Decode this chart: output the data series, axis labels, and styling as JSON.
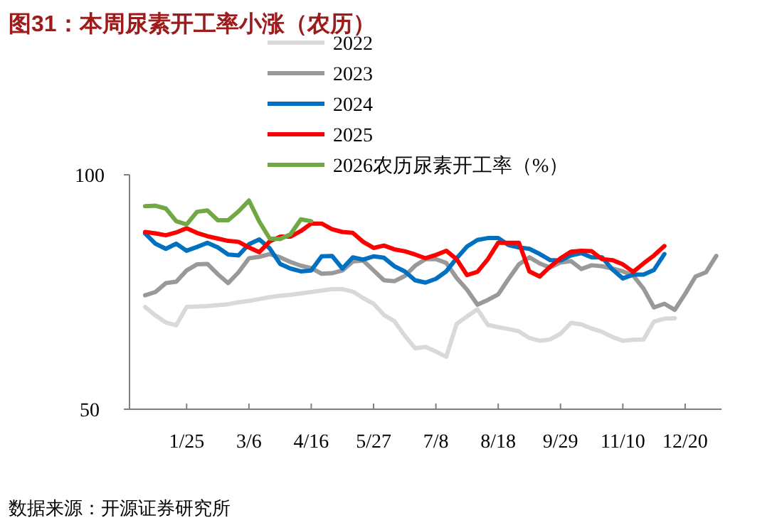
{
  "chart_data": {
    "type": "line",
    "title": "图31：本周尿素开工率小涨（农历）",
    "annotations": [
      "数据来源：开源证券研究所"
    ],
    "ylim": [
      50,
      100
    ],
    "yticks": [
      50,
      100
    ],
    "categories": [
      null,
      null,
      null,
      null,
      null,
      "1/25",
      null,
      null,
      null,
      null,
      null,
      "3/6",
      null,
      null,
      null,
      null,
      null,
      "4/16",
      null,
      null,
      null,
      null,
      null,
      "5/27",
      null,
      null,
      null,
      null,
      null,
      "7/8",
      null,
      null,
      null,
      null,
      null,
      "8/18",
      null,
      null,
      null,
      null,
      null,
      "9/29",
      null,
      null,
      null,
      null,
      null,
      "11/10",
      null,
      null,
      null,
      null,
      null,
      "12/20",
      null,
      null,
      null
    ],
    "legend": "top",
    "series": [
      {
        "name": "2022",
        "color": "#d9d9d9",
        "values": [
          null,
          71.8,
          70.0,
          68.5,
          67.9,
          71.8,
          71.9,
          72.0,
          72.2,
          72.4,
          72.8,
          73.1,
          73.5,
          73.9,
          74.2,
          74.4,
          74.7,
          75.0,
          75.3,
          75.6,
          75.6,
          75.1,
          73.7,
          72.5,
          70.1,
          68.8,
          65.7,
          63.0,
          63.3,
          62.3,
          61.2,
          68.2,
          69.8,
          71.3,
          68.0,
          67.5,
          67.1,
          66.6,
          65.2,
          64.6,
          64.9,
          66.1,
          68.4,
          68.1,
          67.2,
          66.5,
          65.4,
          64.6,
          64.8,
          64.9,
          68.7,
          69.3,
          69.4,
          null,
          null,
          null,
          null
        ]
      },
      {
        "name": "2023",
        "color": "#999999",
        "values": [
          null,
          74.3,
          75.0,
          76.9,
          77.2,
          79.6,
          80.9,
          81.0,
          78.8,
          76.9,
          79.2,
          82.2,
          82.5,
          83.1,
          82.4,
          81.4,
          80.6,
          80.1,
          78.9,
          79.0,
          79.6,
          81.5,
          81.7,
          79.6,
          77.5,
          77.3,
          78.4,
          80.6,
          82.0,
          82.0,
          81.2,
          78.0,
          75.5,
          72.3,
          73.3,
          74.5,
          77.8,
          80.9,
          82.4,
          81.1,
          80.2,
          81.3,
          81.6,
          79.9,
          80.7,
          80.5,
          80.0,
          79.4,
          78.5,
          75.7,
          71.7,
          72.5,
          71.2,
          74.6,
          78.3,
          79.2,
          82.7
        ]
      },
      {
        "name": "2024",
        "color": "#0070c0",
        "values": [
          null,
          87.5,
          85.3,
          84.2,
          85.3,
          83.8,
          84.6,
          85.5,
          84.5,
          83.0,
          82.8,
          85.2,
          86.2,
          84.3,
          81.0,
          80.0,
          79.4,
          79.6,
          82.6,
          82.7,
          80.0,
          82.4,
          81.9,
          82.6,
          82.3,
          80.5,
          79.4,
          77.5,
          77.0,
          77.8,
          79.4,
          82.2,
          84.7,
          86.1,
          86.5,
          86.5,
          85.0,
          84.5,
          84.2,
          83.1,
          81.8,
          81.7,
          82.8,
          83.3,
          82.4,
          82.4,
          79.8,
          77.9,
          78.7,
          78.7,
          79.7,
          83.1,
          null,
          null,
          null,
          null,
          null
        ]
      },
      {
        "name": "2025",
        "color": "#ff0000",
        "values": [
          null,
          87.8,
          87.5,
          87.1,
          87.7,
          88.6,
          87.6,
          86.9,
          86.4,
          85.9,
          85.7,
          84.5,
          83.5,
          85.8,
          86.8,
          86.8,
          88.0,
          89.6,
          89.6,
          88.4,
          87.8,
          87.6,
          85.7,
          84.4,
          84.9,
          84.1,
          83.7,
          83.0,
          82.2,
          82.9,
          83.8,
          82.0,
          78.6,
          79.3,
          82.0,
          85.5,
          85.5,
          85.5,
          79.4,
          78.3,
          80.4,
          82.2,
          83.6,
          83.8,
          83.7,
          82.0,
          81.8,
          80.9,
          79.3,
          81.1,
          82.8,
          84.8,
          null,
          null,
          null,
          null,
          null
        ]
      },
      {
        "name": "2026农历尿素开工率（%）",
        "color": "#70a844",
        "values": [
          null,
          93.3,
          93.4,
          92.8,
          90.1,
          89.4,
          92.1,
          92.4,
          90.3,
          90.3,
          92.2,
          94.5,
          90.0,
          86.4,
          86.3,
          87.3,
          90.5,
          90.1,
          null,
          null,
          null,
          null,
          null,
          null,
          null,
          null,
          null,
          null,
          null,
          null,
          null,
          null,
          null,
          null,
          null,
          null,
          null,
          null,
          null,
          null,
          null,
          null,
          null,
          null,
          null,
          null,
          null,
          null,
          null,
          null,
          null,
          null,
          null,
          null,
          null,
          null,
          null
        ]
      }
    ]
  }
}
